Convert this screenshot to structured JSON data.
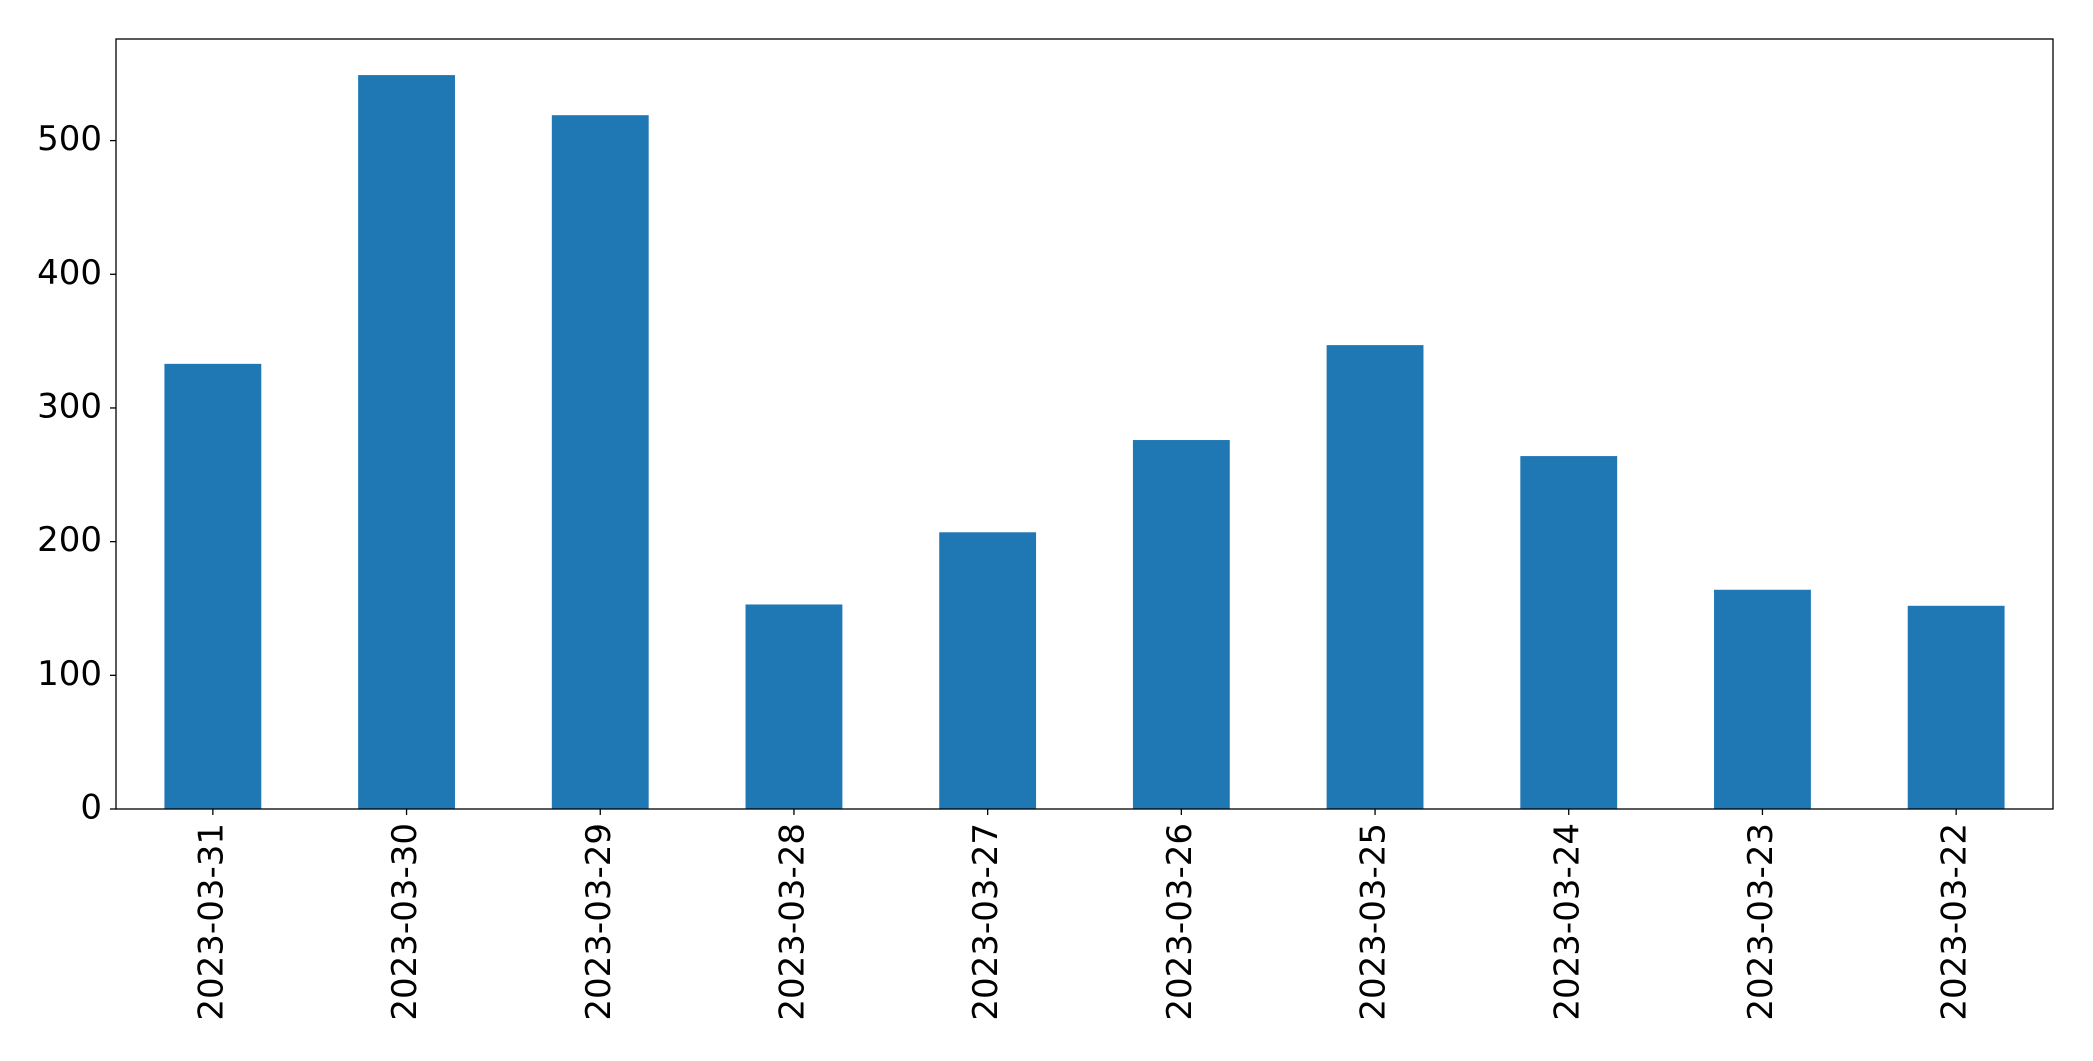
{
  "chart_data": {
    "type": "bar",
    "categories": [
      "2023-03-31",
      "2023-03-30",
      "2023-03-29",
      "2023-03-28",
      "2023-03-27",
      "2023-03-26",
      "2023-03-25",
      "2023-03-24",
      "2023-03-23",
      "2023-03-22"
    ],
    "values": [
      333,
      549,
      519,
      153,
      207,
      276,
      347,
      264,
      164,
      152
    ],
    "color": "#1f77b4",
    "ylim": [
      0,
      576
    ],
    "yticks": [
      0,
      100,
      200,
      300,
      400,
      500
    ],
    "grid": false
  }
}
